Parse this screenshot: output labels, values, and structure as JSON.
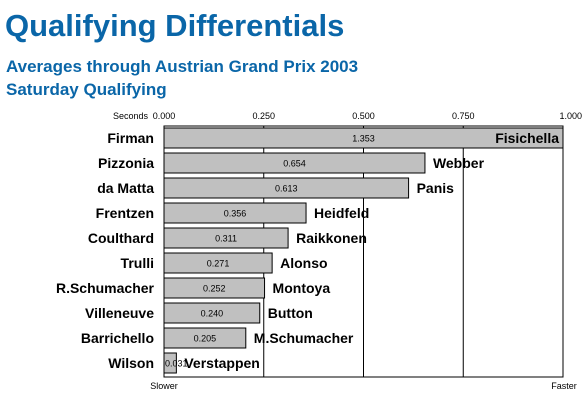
{
  "header": {
    "title": "Qualifying Differentials",
    "subtitle": "Averages through Austrian Grand Prix 2003",
    "subtitle2": "Saturday Qualifying"
  },
  "chart_data": {
    "type": "bar",
    "orientation": "horizontal",
    "axis_label_left": "Seconds",
    "x_ticks": [
      "0.000",
      "0.250",
      "0.500",
      "0.750",
      "1.000"
    ],
    "x_tick_values": [
      0,
      0.25,
      0.5,
      0.75,
      1.0
    ],
    "xlim": [
      0,
      1.0
    ],
    "left_end_label": "Slower",
    "right_end_label": "Faster",
    "grid": true,
    "bar_color": "#c0c0c0",
    "rows": [
      {
        "slower": "Firman",
        "faster": "Fisichella",
        "value": 1.353,
        "label": "1.353"
      },
      {
        "slower": "Pizzonia",
        "faster": "Webber",
        "value": 0.654,
        "label": "0.654"
      },
      {
        "slower": "da Matta",
        "faster": "Panis",
        "value": 0.613,
        "label": "0.613"
      },
      {
        "slower": "Frentzen",
        "faster": "Heidfeld",
        "value": 0.356,
        "label": "0.356"
      },
      {
        "slower": "Coulthard",
        "faster": "Raikkonen",
        "value": 0.311,
        "label": "0.311"
      },
      {
        "slower": "Trulli",
        "faster": "Alonso",
        "value": 0.271,
        "label": "0.271"
      },
      {
        "slower": "R.Schumacher",
        "faster": "Montoya",
        "value": 0.252,
        "label": "0.252"
      },
      {
        "slower": "Villeneuve",
        "faster": "Button",
        "value": 0.24,
        "label": "0.240"
      },
      {
        "slower": "Barrichello",
        "faster": "M.Schumacher",
        "value": 0.205,
        "label": "0.205"
      },
      {
        "slower": "Wilson",
        "faster": "Verstappen",
        "value": 0.031,
        "label": "0.031"
      }
    ]
  }
}
